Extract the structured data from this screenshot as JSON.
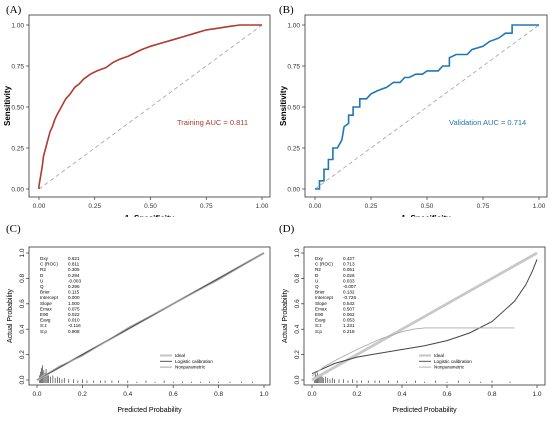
{
  "panels": [
    {
      "label": "(A)"
    },
    {
      "label": "(B)"
    },
    {
      "label": "(C)"
    },
    {
      "label": "(D)"
    }
  ],
  "chart_data": [
    {
      "type": "line",
      "panel": "(A)",
      "xlabel": "1−Specificity",
      "ylabel": "Sensitivity",
      "xlim": [
        0,
        1
      ],
      "ylim": [
        0,
        1
      ],
      "xticks": [
        "0.00",
        "0.25",
        "0.50",
        "0.75",
        "1.00"
      ],
      "yticks": [
        "0.00",
        "0.25",
        "0.50",
        "0.75",
        "1.00"
      ],
      "annotation": "Training AUC = 0.811",
      "colors": {
        "curve": "#b03a2e",
        "reference": "#aaaaaa"
      },
      "series": [
        {
          "values": [
            [
              0,
              0
            ],
            [
              0,
              0.02
            ],
            [
              0.005,
              0.06
            ],
            [
              0.01,
              0.1
            ],
            [
              0.015,
              0.14
            ],
            [
              0.02,
              0.2
            ],
            [
              0.03,
              0.25
            ],
            [
              0.04,
              0.3
            ],
            [
              0.05,
              0.35
            ],
            [
              0.06,
              0.38
            ],
            [
              0.07,
              0.42
            ],
            [
              0.08,
              0.45
            ],
            [
              0.1,
              0.5
            ],
            [
              0.12,
              0.55
            ],
            [
              0.14,
              0.58
            ],
            [
              0.16,
              0.62
            ],
            [
              0.18,
              0.64
            ],
            [
              0.2,
              0.67
            ],
            [
              0.23,
              0.7
            ],
            [
              0.26,
              0.72
            ],
            [
              0.3,
              0.74
            ],
            [
              0.33,
              0.77
            ],
            [
              0.36,
              0.79
            ],
            [
              0.4,
              0.81
            ],
            [
              0.43,
              0.83
            ],
            [
              0.46,
              0.85
            ],
            [
              0.5,
              0.87
            ],
            [
              0.55,
              0.89
            ],
            [
              0.6,
              0.91
            ],
            [
              0.65,
              0.93
            ],
            [
              0.7,
              0.95
            ],
            [
              0.75,
              0.97
            ],
            [
              0.8,
              0.98
            ],
            [
              0.85,
              0.99
            ],
            [
              0.9,
              1.0
            ],
            [
              1.0,
              1.0
            ]
          ]
        }
      ],
      "reference_line": [
        [
          0,
          0
        ],
        [
          1,
          1
        ]
      ]
    },
    {
      "type": "line",
      "panel": "(B)",
      "xlabel": "1−Specificity",
      "ylabel": "Sensitivity",
      "xlim": [
        0,
        1
      ],
      "ylim": [
        0,
        1
      ],
      "xticks": [
        "0.00",
        "0.25",
        "0.50",
        "0.75",
        "1.00"
      ],
      "yticks": [
        "0.00",
        "0.25",
        "0.50",
        "0.75",
        "1.00"
      ],
      "annotation": "Validation AUC = 0.714",
      "colors": {
        "curve": "#1f78b4",
        "reference": "#aaaaaa"
      },
      "series": [
        {
          "values": [
            [
              0,
              0
            ],
            [
              0.02,
              0
            ],
            [
              0.02,
              0.05
            ],
            [
              0.04,
              0.05
            ],
            [
              0.04,
              0.12
            ],
            [
              0.06,
              0.12
            ],
            [
              0.06,
              0.18
            ],
            [
              0.08,
              0.18
            ],
            [
              0.08,
              0.25
            ],
            [
              0.1,
              0.25
            ],
            [
              0.12,
              0.3
            ],
            [
              0.13,
              0.38
            ],
            [
              0.15,
              0.4
            ],
            [
              0.15,
              0.45
            ],
            [
              0.17,
              0.45
            ],
            [
              0.17,
              0.5
            ],
            [
              0.2,
              0.5
            ],
            [
              0.2,
              0.55
            ],
            [
              0.23,
              0.55
            ],
            [
              0.25,
              0.58
            ],
            [
              0.28,
              0.6
            ],
            [
              0.32,
              0.62
            ],
            [
              0.35,
              0.65
            ],
            [
              0.38,
              0.65
            ],
            [
              0.4,
              0.68
            ],
            [
              0.42,
              0.68
            ],
            [
              0.45,
              0.7
            ],
            [
              0.48,
              0.7
            ],
            [
              0.5,
              0.72
            ],
            [
              0.55,
              0.72
            ],
            [
              0.57,
              0.75
            ],
            [
              0.6,
              0.75
            ],
            [
              0.6,
              0.8
            ],
            [
              0.63,
              0.82
            ],
            [
              0.68,
              0.82
            ],
            [
              0.7,
              0.85
            ],
            [
              0.75,
              0.87
            ],
            [
              0.78,
              0.9
            ],
            [
              0.82,
              0.92
            ],
            [
              0.85,
              0.95
            ],
            [
              0.88,
              0.95
            ],
            [
              0.88,
              1.0
            ],
            [
              1.0,
              1.0
            ]
          ]
        }
      ],
      "reference_line": [
        [
          0,
          0
        ],
        [
          1,
          1
        ]
      ]
    },
    {
      "type": "line",
      "panel": "(C)",
      "xlabel": "Predicted Probability",
      "ylabel": "Actual Probability",
      "xlim": [
        0,
        1
      ],
      "ylim": [
        0,
        1
      ],
      "xticks": [
        "0.0",
        "0.2",
        "0.4",
        "0.6",
        "0.8",
        "1.0"
      ],
      "yticks": [
        "0.0",
        "0.2",
        "0.4",
        "0.6",
        "0.8",
        "1.0"
      ],
      "stats": [
        {
          "name": "Dxy",
          "value": "0.621"
        },
        {
          "name": "C (ROC)",
          "value": "0.811"
        },
        {
          "name": "R2",
          "value": "0.305"
        },
        {
          "name": "D",
          "value": "0.294"
        },
        {
          "name": "U",
          "value": "-0.003"
        },
        {
          "name": "Q",
          "value": "0.296"
        },
        {
          "name": "Brier",
          "value": "0.115"
        },
        {
          "name": "Intercept",
          "value": "0.000"
        },
        {
          "name": "Slope",
          "value": "1.000"
        },
        {
          "name": "Emax",
          "value": "0.075"
        },
        {
          "name": "E90",
          "value": "0.022"
        },
        {
          "name": "Eavg",
          "value": "0.010"
        },
        {
          "name": "S:z",
          "value": "-0.116"
        },
        {
          "name": "S:p",
          "value": "0.908"
        }
      ],
      "legend": [
        "Ideal",
        "Logistic calibration",
        "Nonparametric"
      ],
      "series": [
        {
          "name": "Ideal",
          "color": "#c8c8c8",
          "values": [
            [
              0,
              0
            ],
            [
              1,
              1
            ]
          ]
        },
        {
          "name": "Logistic calibration",
          "color": "#444444",
          "values": [
            [
              0,
              0
            ],
            [
              0.2,
              0.2
            ],
            [
              0.4,
              0.4
            ],
            [
              0.6,
              0.6
            ],
            [
              0.8,
              0.8
            ],
            [
              1,
              1
            ]
          ]
        },
        {
          "name": "Nonparametric",
          "color": "#999999",
          "values": [
            [
              0,
              0
            ],
            [
              0.1,
              0.11
            ],
            [
              0.2,
              0.19
            ],
            [
              0.4,
              0.41
            ],
            [
              0.6,
              0.6
            ],
            [
              0.8,
              0.79
            ],
            [
              1,
              1
            ]
          ]
        }
      ],
      "rug": [
        0.01,
        0.015,
        0.02,
        0.025,
        0.03,
        0.035,
        0.04,
        0.045,
        0.05,
        0.06,
        0.07,
        0.08,
        0.09,
        0.1,
        0.11,
        0.12,
        0.14,
        0.16,
        0.18,
        0.2,
        0.22,
        0.25,
        0.28,
        0.3,
        0.33,
        0.36,
        0.4,
        0.44,
        0.48,
        0.52,
        0.56,
        0.6,
        0.64,
        0.68,
        0.72,
        0.76,
        0.8,
        0.85,
        0.9,
        0.95
      ],
      "rug_heights": [
        0.06,
        0.09,
        0.12,
        0.14,
        0.1,
        0.08,
        0.11,
        0.07,
        0.06,
        0.05,
        0.06,
        0.04,
        0.05,
        0.04,
        0.03,
        0.04,
        0.03,
        0.03,
        0.02,
        0.03,
        0.02,
        0.02,
        0.02,
        0.02,
        0.02,
        0.02,
        0.02,
        0.01,
        0.02,
        0.01,
        0.02,
        0.01,
        0.01,
        0.01,
        0.01,
        0.01,
        0.01,
        0.01,
        0.01,
        0.01
      ]
    },
    {
      "type": "line",
      "panel": "(D)",
      "xlabel": "Predicted Probability",
      "ylabel": "Actual Probability",
      "xlim": [
        0,
        1
      ],
      "ylim": [
        0,
        1
      ],
      "xticks": [
        "0.0",
        "0.2",
        "0.4",
        "0.6",
        "0.8",
        "1.0"
      ],
      "yticks": [
        "0.0",
        "0.2",
        "0.4",
        "0.6",
        "0.8",
        "1.0"
      ],
      "stats": [
        {
          "name": "Dxy",
          "value": "0.427"
        },
        {
          "name": "C (ROC)",
          "value": "0.713"
        },
        {
          "name": "R2",
          "value": "0.051"
        },
        {
          "name": "D",
          "value": "0.026"
        },
        {
          "name": "U",
          "value": "0.033"
        },
        {
          "name": "Q",
          "value": "-0.007"
        },
        {
          "name": "Brier",
          "value": "0.132"
        },
        {
          "name": "Intercept",
          "value": "-0.726"
        },
        {
          "name": "Slope",
          "value": "0.542"
        },
        {
          "name": "Emax",
          "value": "0.507"
        },
        {
          "name": "E90",
          "value": "0.062"
        },
        {
          "name": "Eavg",
          "value": "0.053"
        },
        {
          "name": "S:z",
          "value": "1.231"
        },
        {
          "name": "S:p",
          "value": "0.218"
        }
      ],
      "legend": [
        "Ideal",
        "Logistic calibration",
        "Nonparametric"
      ],
      "series": [
        {
          "name": "Ideal",
          "color": "#c8c8c8",
          "values": [
            [
              0,
              0
            ],
            [
              1,
              1
            ]
          ]
        },
        {
          "name": "Logistic calibration",
          "color": "#444444",
          "values": [
            [
              0,
              0.05
            ],
            [
              0.05,
              0.09
            ],
            [
              0.1,
              0.13
            ],
            [
              0.2,
              0.18
            ],
            [
              0.3,
              0.21
            ],
            [
              0.4,
              0.24
            ],
            [
              0.5,
              0.27
            ],
            [
              0.6,
              0.31
            ],
            [
              0.7,
              0.37
            ],
            [
              0.8,
              0.46
            ],
            [
              0.9,
              0.62
            ],
            [
              0.95,
              0.75
            ],
            [
              0.98,
              0.86
            ],
            [
              1.0,
              0.95
            ]
          ]
        },
        {
          "name": "Nonparametric",
          "color": "#aaaaaa",
          "values": [
            [
              0,
              0.03
            ],
            [
              0.05,
              0.1
            ],
            [
              0.1,
              0.15
            ],
            [
              0.2,
              0.24
            ],
            [
              0.3,
              0.32
            ],
            [
              0.4,
              0.38
            ],
            [
              0.45,
              0.4
            ],
            [
              0.5,
              0.41
            ],
            [
              0.6,
              0.41
            ],
            [
              0.7,
              0.41
            ],
            [
              0.8,
              0.41
            ],
            [
              0.9,
              0.41
            ]
          ]
        }
      ],
      "rug": [
        0.01,
        0.015,
        0.02,
        0.025,
        0.03,
        0.035,
        0.04,
        0.045,
        0.05,
        0.06,
        0.07,
        0.08,
        0.09,
        0.1,
        0.12,
        0.14,
        0.16,
        0.18,
        0.2,
        0.22,
        0.25,
        0.28,
        0.3,
        0.34,
        0.38,
        0.42,
        0.46,
        0.5,
        0.55,
        0.6,
        0.65,
        0.7,
        0.75,
        0.8,
        0.88
      ],
      "rug_heights": [
        0.05,
        0.07,
        0.06,
        0.08,
        0.06,
        0.05,
        0.07,
        0.05,
        0.04,
        0.05,
        0.04,
        0.03,
        0.04,
        0.03,
        0.03,
        0.03,
        0.02,
        0.03,
        0.02,
        0.02,
        0.02,
        0.02,
        0.02,
        0.02,
        0.02,
        0.01,
        0.02,
        0.01,
        0.02,
        0.01,
        0.02,
        0.01,
        0.01,
        0.02,
        0.01
      ]
    }
  ]
}
